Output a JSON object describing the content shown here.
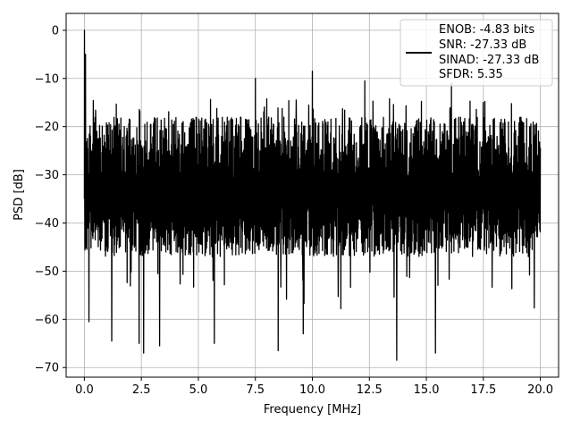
{
  "chart_data": {
    "type": "line",
    "title": "",
    "xlabel": "Frequency [MHz]",
    "ylabel": "PSD [dB]",
    "xlim": [
      -0.8,
      20.8
    ],
    "ylim": [
      -72,
      3.5
    ],
    "xticks": [
      0.0,
      2.5,
      5.0,
      7.5,
      10.0,
      12.5,
      15.0,
      17.5,
      20.0
    ],
    "xtick_labels": [
      "0.0",
      "2.5",
      "5.0",
      "7.5",
      "10.0",
      "12.5",
      "15.0",
      "17.5",
      "20.0"
    ],
    "yticks": [
      0,
      -10,
      -20,
      -30,
      -40,
      -50,
      -60,
      -70
    ],
    "ytick_labels": [
      "0",
      "−10",
      "−20",
      "−30",
      "−40",
      "−50",
      "−60",
      "−70"
    ],
    "grid": true,
    "legend_position": "top-right",
    "line_color": "#000000",
    "series": [
      {
        "name": "",
        "x_range": [
          0.0,
          20.0
        ],
        "peak": {
          "x": 0.0,
          "y": 0.0
        },
        "upper_envelope_y": -14,
        "lower_envelope_y": -45,
        "spikes": [
          {
            "x": 0.05,
            "y": -5
          },
          {
            "x": 7.5,
            "y": -10
          },
          {
            "x": 10.0,
            "y": -8.5
          },
          {
            "x": 12.3,
            "y": -10.5
          },
          {
            "x": 16.1,
            "y": -11
          }
        ],
        "dips": [
          {
            "x": 0.2,
            "y": -60.5
          },
          {
            "x": 1.2,
            "y": -64.5
          },
          {
            "x": 2.4,
            "y": -65
          },
          {
            "x": 2.6,
            "y": -67
          },
          {
            "x": 3.3,
            "y": -65.5
          },
          {
            "x": 5.7,
            "y": -65
          },
          {
            "x": 8.5,
            "y": -66.5
          },
          {
            "x": 9.6,
            "y": -63
          },
          {
            "x": 13.7,
            "y": -68.5
          },
          {
            "x": 15.4,
            "y": -67
          }
        ]
      }
    ],
    "legend_text": [
      "ENOB: -4.83 bits",
      "SNR: -27.33 dB",
      "SINAD: -27.33 dB",
      "SFDR: 5.35"
    ]
  }
}
